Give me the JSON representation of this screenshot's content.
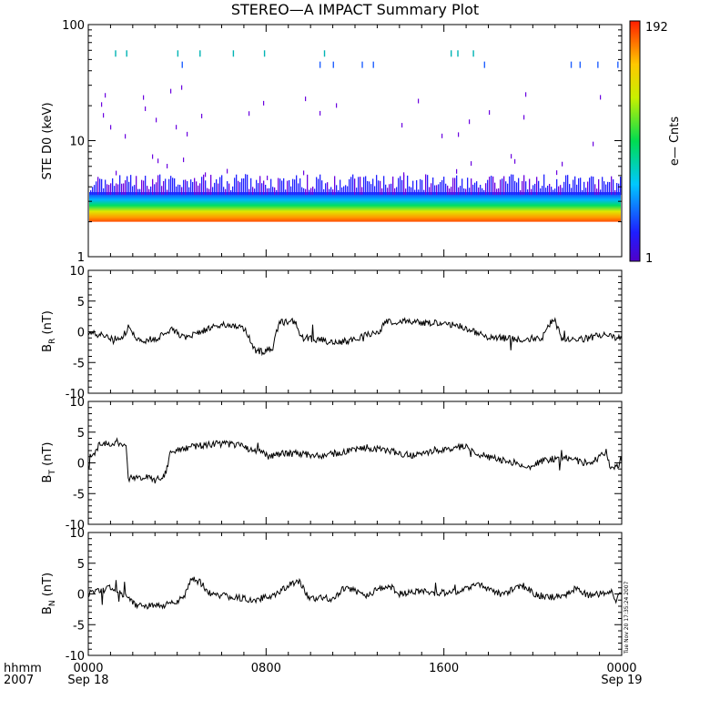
{
  "chart_data": {
    "title": "STEREO—A IMPACT Summary Plot",
    "x_label_top": "hhmm",
    "x_label_bottom": "2007",
    "x_ticks": [
      {
        "value": "0000",
        "date": "Sep 18"
      },
      {
        "value": "0800",
        "date": ""
      },
      {
        "value": "1600",
        "date": ""
      },
      {
        "value": "0000",
        "date": "Sep 19"
      }
    ],
    "x_range_hours": [
      0,
      24
    ],
    "timestamp": "Tue Nov 20 17:35:24 2007",
    "panels": [
      {
        "type": "heatmap",
        "ylabel": "STE D0 (keV)",
        "y_scale": "log",
        "ylim": [
          1,
          100
        ],
        "y_tick_labels": [
          "1",
          "10",
          "100"
        ],
        "colorbar": {
          "label": "e— Cnts",
          "min_label": "1",
          "max_label": "192",
          "min": 1,
          "max": 192
        },
        "band_energy_keV": [
          2.0,
          3.6
        ],
        "band_peak_keV": 2.2
      },
      {
        "type": "line",
        "ylabel": "B",
        "ylabel_sub": "R",
        "ylabel_unit": "(nT)",
        "ylim": [
          -10,
          10
        ],
        "y_tick_labels": [
          "-10",
          "-5",
          "0",
          "5",
          "10"
        ],
        "series": [
          {
            "x": [
              0,
              0.5,
              1,
              1.5,
              1.8,
              2.2,
              3,
              3.8,
              4.3,
              5,
              6,
              6.9,
              7.2,
              7.5,
              7.9,
              8.3,
              8.6,
              9.3,
              9.6,
              10.3,
              11,
              11.7,
              12.5,
              13.1,
              13.3,
              14.2,
              15.1,
              16,
              16.6,
              17.1,
              17.7,
              18,
              18.6,
              19.3,
              20,
              20.4,
              20.8,
              21,
              21.3,
              22,
              22.6,
              23,
              23.5,
              24
            ],
            "y": [
              0,
              -0.5,
              -1,
              -1.2,
              0.8,
              -1.5,
              -1.2,
              0.5,
              -1,
              0,
              1.2,
              0.8,
              -0.5,
              -3,
              -3.3,
              -2.5,
              1.5,
              1.8,
              -1,
              -1.2,
              -1.8,
              -1.5,
              -0.5,
              -0.2,
              1.5,
              1.8,
              1.5,
              1.3,
              1,
              0.5,
              -0.5,
              -0.8,
              -1,
              -1.3,
              -1,
              -1.2,
              1.5,
              1.8,
              -1,
              -1.3,
              -1,
              -0.5,
              -0.8,
              -1
            ]
          }
        ]
      },
      {
        "type": "line",
        "ylabel": "B",
        "ylabel_sub": "T",
        "ylabel_unit": "(nT)",
        "ylim": [
          -10,
          10
        ],
        "y_tick_labels": [
          "-10",
          "-5",
          "0",
          "5",
          "10"
        ],
        "series": [
          {
            "x": [
              0,
              0.5,
              1,
              1.5,
              1.7,
              1.8,
              2.5,
              3,
              3.3,
              3.5,
              3.7,
              4.5,
              5.5,
              6,
              6.8,
              7.2,
              7.8,
              8.1,
              8.5,
              9.5,
              10.5,
              11.5,
              12.5,
              13.5,
              14.5,
              15.5,
              16.5,
              17,
              17.5,
              18.5,
              19.2,
              19.8,
              20.5,
              21.5,
              22.3,
              22.9,
              23.3,
              23.5,
              24
            ],
            "y": [
              0,
              3,
              3.1,
              3,
              2.8,
              -2.5,
              -2.3,
              -2.8,
              -2.5,
              -1.5,
              2,
              2.5,
              3,
              3.1,
              2.8,
              2.2,
              2,
              1,
              1.5,
              1.5,
              1.2,
              1.8,
              2.5,
              2,
              1.2,
              1.8,
              2.5,
              2.8,
              1.5,
              0.5,
              0,
              -0.8,
              0.5,
              0.8,
              0,
              0.5,
              1.8,
              -1,
              0
            ]
          }
        ]
      },
      {
        "type": "line",
        "ylabel": "B",
        "ylabel_sub": "N",
        "ylabel_unit": "(nT)",
        "ylim": [
          -10,
          10
        ],
        "y_tick_labels": [
          "-10",
          "-5",
          "0",
          "5",
          "10"
        ],
        "series": [
          {
            "x": [
              0,
              0.5,
              1,
              1.5,
              1.8,
              2.2,
              3,
              3.8,
              4.3,
              4.6,
              5,
              5.5,
              6.5,
              7.5,
              8.5,
              9,
              9.5,
              10,
              10.5,
              11,
              11.5,
              12,
              12.5,
              13,
              13.5,
              14,
              15,
              15.5,
              16.5,
              17.5,
              18,
              18.5,
              19,
              19.5,
              20,
              20.5,
              21,
              21.5,
              22,
              22.5,
              23,
              23.5,
              23.7,
              24
            ],
            "y": [
              0,
              0.5,
              1,
              0,
              -0.5,
              -2,
              -2,
              -1.5,
              -0.5,
              2.5,
              2,
              0,
              -0.5,
              -1,
              0,
              1.5,
              2,
              -1,
              -0.5,
              -0.8,
              1,
              0.5,
              -0.5,
              0.8,
              1.5,
              0,
              0.5,
              0.2,
              0.3,
              1.5,
              0.8,
              0,
              0.5,
              1.5,
              0.2,
              -0.5,
              -0.5,
              0,
              1,
              -0.3,
              0,
              0.5,
              -1,
              0
            ]
          }
        ]
      }
    ]
  }
}
